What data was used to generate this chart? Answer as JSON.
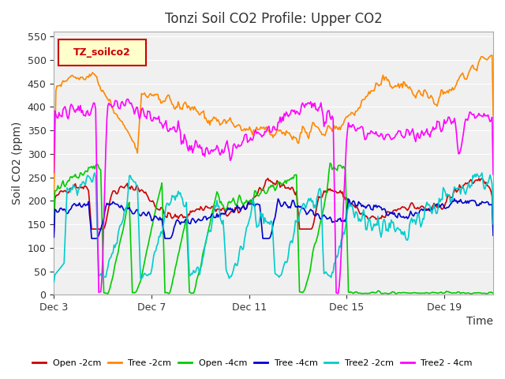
{
  "title": "Tonzi Soil CO2 Profile: Upper CO2",
  "ylabel": "Soil CO2 (ppm)",
  "xlabel": "Time",
  "legend_label": "TZ_soilco2",
  "series_names": [
    "Open -2cm",
    "Tree -2cm",
    "Open -4cm",
    "Tree -4cm",
    "Tree2 -2cm",
    "Tree2 - 4cm"
  ],
  "series_colors": [
    "#cc0000",
    "#ff8800",
    "#00cc00",
    "#0000cc",
    "#00cccc",
    "#ff00ff"
  ],
  "ylim": [
    0,
    560
  ],
  "yticks": [
    0,
    50,
    100,
    150,
    200,
    250,
    300,
    350,
    400,
    450,
    500,
    550
  ],
  "xtick_labels": [
    "Dec 3",
    "Dec 7",
    "Dec 11",
    "Dec 15",
    "Dec 19"
  ],
  "bg_color": "#e8e8e8",
  "plot_bg_color": "#f0f0f0",
  "title_color": "#333333",
  "border_color": "#999999"
}
